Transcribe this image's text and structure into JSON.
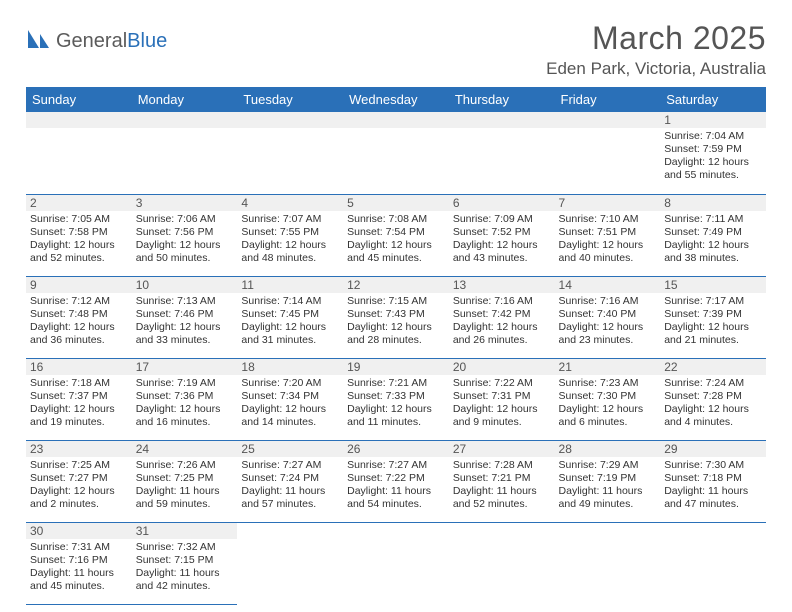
{
  "logo": {
    "text1": "General",
    "text2": "Blue"
  },
  "title": "March 2025",
  "location": "Eden Park, Victoria, Australia",
  "colors": {
    "header_bg": "#2a70b8",
    "header_text": "#ffffff",
    "daynum_bg": "#f0f0f0",
    "rule": "#2a70b8",
    "text_body": "#333333",
    "text_title": "#555555",
    "page_bg": "#ffffff"
  },
  "typography": {
    "title_fontsize": 32,
    "location_fontsize": 17,
    "weekday_fontsize": 13,
    "daynum_fontsize": 12,
    "body_fontsize": 10.5,
    "font_family": "Arial"
  },
  "weekdays": [
    "Sunday",
    "Monday",
    "Tuesday",
    "Wednesday",
    "Thursday",
    "Friday",
    "Saturday"
  ],
  "weeks": [
    [
      null,
      null,
      null,
      null,
      null,
      null,
      {
        "n": "1",
        "sr": "7:04 AM",
        "ss": "7:59 PM",
        "dl": "12 hours and 55 minutes."
      }
    ],
    [
      {
        "n": "2",
        "sr": "7:05 AM",
        "ss": "7:58 PM",
        "dl": "12 hours and 52 minutes."
      },
      {
        "n": "3",
        "sr": "7:06 AM",
        "ss": "7:56 PM",
        "dl": "12 hours and 50 minutes."
      },
      {
        "n": "4",
        "sr": "7:07 AM",
        "ss": "7:55 PM",
        "dl": "12 hours and 48 minutes."
      },
      {
        "n": "5",
        "sr": "7:08 AM",
        "ss": "7:54 PM",
        "dl": "12 hours and 45 minutes."
      },
      {
        "n": "6",
        "sr": "7:09 AM",
        "ss": "7:52 PM",
        "dl": "12 hours and 43 minutes."
      },
      {
        "n": "7",
        "sr": "7:10 AM",
        "ss": "7:51 PM",
        "dl": "12 hours and 40 minutes."
      },
      {
        "n": "8",
        "sr": "7:11 AM",
        "ss": "7:49 PM",
        "dl": "12 hours and 38 minutes."
      }
    ],
    [
      {
        "n": "9",
        "sr": "7:12 AM",
        "ss": "7:48 PM",
        "dl": "12 hours and 36 minutes."
      },
      {
        "n": "10",
        "sr": "7:13 AM",
        "ss": "7:46 PM",
        "dl": "12 hours and 33 minutes."
      },
      {
        "n": "11",
        "sr": "7:14 AM",
        "ss": "7:45 PM",
        "dl": "12 hours and 31 minutes."
      },
      {
        "n": "12",
        "sr": "7:15 AM",
        "ss": "7:43 PM",
        "dl": "12 hours and 28 minutes."
      },
      {
        "n": "13",
        "sr": "7:16 AM",
        "ss": "7:42 PM",
        "dl": "12 hours and 26 minutes."
      },
      {
        "n": "14",
        "sr": "7:16 AM",
        "ss": "7:40 PM",
        "dl": "12 hours and 23 minutes."
      },
      {
        "n": "15",
        "sr": "7:17 AM",
        "ss": "7:39 PM",
        "dl": "12 hours and 21 minutes."
      }
    ],
    [
      {
        "n": "16",
        "sr": "7:18 AM",
        "ss": "7:37 PM",
        "dl": "12 hours and 19 minutes."
      },
      {
        "n": "17",
        "sr": "7:19 AM",
        "ss": "7:36 PM",
        "dl": "12 hours and 16 minutes."
      },
      {
        "n": "18",
        "sr": "7:20 AM",
        "ss": "7:34 PM",
        "dl": "12 hours and 14 minutes."
      },
      {
        "n": "19",
        "sr": "7:21 AM",
        "ss": "7:33 PM",
        "dl": "12 hours and 11 minutes."
      },
      {
        "n": "20",
        "sr": "7:22 AM",
        "ss": "7:31 PM",
        "dl": "12 hours and 9 minutes."
      },
      {
        "n": "21",
        "sr": "7:23 AM",
        "ss": "7:30 PM",
        "dl": "12 hours and 6 minutes."
      },
      {
        "n": "22",
        "sr": "7:24 AM",
        "ss": "7:28 PM",
        "dl": "12 hours and 4 minutes."
      }
    ],
    [
      {
        "n": "23",
        "sr": "7:25 AM",
        "ss": "7:27 PM",
        "dl": "12 hours and 2 minutes."
      },
      {
        "n": "24",
        "sr": "7:26 AM",
        "ss": "7:25 PM",
        "dl": "11 hours and 59 minutes."
      },
      {
        "n": "25",
        "sr": "7:27 AM",
        "ss": "7:24 PM",
        "dl": "11 hours and 57 minutes."
      },
      {
        "n": "26",
        "sr": "7:27 AM",
        "ss": "7:22 PM",
        "dl": "11 hours and 54 minutes."
      },
      {
        "n": "27",
        "sr": "7:28 AM",
        "ss": "7:21 PM",
        "dl": "11 hours and 52 minutes."
      },
      {
        "n": "28",
        "sr": "7:29 AM",
        "ss": "7:19 PM",
        "dl": "11 hours and 49 minutes."
      },
      {
        "n": "29",
        "sr": "7:30 AM",
        "ss": "7:18 PM",
        "dl": "11 hours and 47 minutes."
      }
    ],
    [
      {
        "n": "30",
        "sr": "7:31 AM",
        "ss": "7:16 PM",
        "dl": "11 hours and 45 minutes."
      },
      {
        "n": "31",
        "sr": "7:32 AM",
        "ss": "7:15 PM",
        "dl": "11 hours and 42 minutes."
      },
      null,
      null,
      null,
      null,
      null
    ]
  ],
  "labels": {
    "sunrise": "Sunrise:",
    "sunset": "Sunset:",
    "daylight": "Daylight:"
  }
}
